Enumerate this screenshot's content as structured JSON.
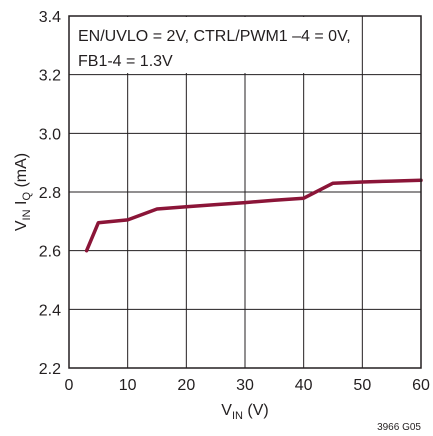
{
  "chart_data": {
    "type": "line",
    "title": "",
    "annotation_lines": [
      "EN/UVLO = 2V, CTRL/PWM1 –4 = 0V,",
      "FB1-4 = 1.3V"
    ],
    "xlabel": {
      "main": "V",
      "sub": "IN",
      "suffix": " (V)"
    },
    "ylabel": {
      "main1": "V",
      "sub1": "IN",
      "main2": " I",
      "sub2": "Q",
      "suffix": " (mA)"
    },
    "xlim": [
      0,
      60
    ],
    "ylim": [
      2.2,
      3.4
    ],
    "x_ticks": [
      0,
      10,
      20,
      30,
      40,
      50,
      60
    ],
    "y_ticks": [
      2.2,
      2.4,
      2.6,
      2.8,
      3.0,
      3.2,
      3.4
    ],
    "x_tick_labels": [
      "0",
      "10",
      "20",
      "30",
      "40",
      "50",
      "60"
    ],
    "y_tick_labels": [
      "2.2",
      "2.4",
      "2.6",
      "2.8",
      "3.0",
      "3.2",
      "3.4"
    ],
    "grid": true,
    "series": [
      {
        "color": "#8b1538",
        "points": [
          [
            3,
            2.6
          ],
          [
            5,
            2.695
          ],
          [
            10,
            2.705
          ],
          [
            15,
            2.742
          ],
          [
            20,
            2.75
          ],
          [
            25,
            2.757
          ],
          [
            30,
            2.764
          ],
          [
            35,
            2.772
          ],
          [
            40,
            2.779
          ],
          [
            45,
            2.83
          ],
          [
            50,
            2.834
          ],
          [
            55,
            2.837
          ],
          [
            60,
            2.84
          ]
        ]
      }
    ],
    "figure_id": "3966 G05"
  }
}
